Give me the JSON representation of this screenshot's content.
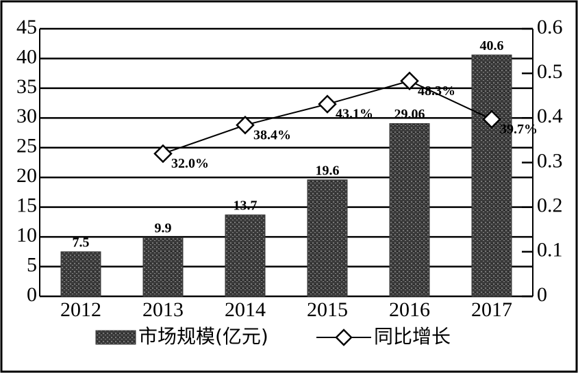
{
  "chart_data": {
    "type": "bar",
    "categories": [
      "2012",
      "2013",
      "2014",
      "2015",
      "2016",
      "2017"
    ],
    "series": [
      {
        "name": "市场规模(亿元)",
        "type": "bar",
        "color": "#3a3a3a",
        "values": [
          7.5,
          9.9,
          13.7,
          19.6,
          29.06,
          40.6
        ]
      },
      {
        "name": "同比增长",
        "type": "line",
        "axis": "y2",
        "color": "#000000",
        "values": [
          null,
          0.32,
          0.384,
          0.431,
          0.483,
          0.397
        ],
        "value_labels": [
          null,
          "32.0%",
          "38.4%",
          "43.1%",
          "48.3%",
          "39.7%"
        ]
      }
    ],
    "ylim": [
      0,
      45
    ],
    "yticks": [
      0,
      5,
      10,
      15,
      20,
      25,
      30,
      35,
      40,
      45
    ],
    "y2lim": [
      0,
      0.6
    ],
    "y2ticks": [
      0,
      0.1,
      0.2,
      0.3,
      0.4,
      0.5,
      0.6
    ],
    "grid": true,
    "legend": "bottom"
  }
}
